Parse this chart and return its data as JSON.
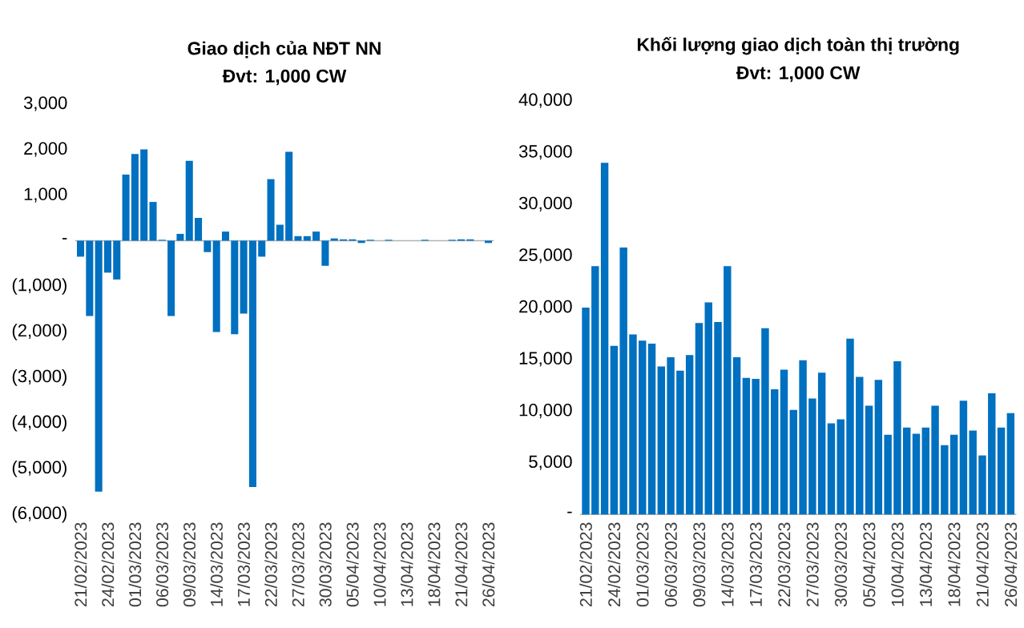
{
  "chart_data": [
    {
      "type": "bar",
      "title": "Giao dịch của NĐT NN",
      "subtitle": "Đvt: 1,000 CW",
      "color": "#0070c0",
      "categories": [
        "21/02/2023",
        null,
        null,
        "24/02/2023",
        null,
        null,
        "01/03/2023",
        null,
        null,
        "06/03/2023",
        null,
        null,
        "09/03/2023",
        null,
        null,
        "14/03/2023",
        null,
        null,
        "17/03/2023",
        null,
        null,
        "22/03/2023",
        null,
        null,
        "27/03/2023",
        null,
        null,
        "30/03/2023",
        null,
        null,
        "05/04/2023",
        null,
        null,
        "10/04/2023",
        null,
        null,
        "13/04/2023",
        null,
        null,
        "18/04/2023",
        null,
        null,
        "21/04/2023",
        null,
        null,
        "26/04/2023"
      ],
      "values": [
        -350,
        -1650,
        -5500,
        -700,
        -850,
        1450,
        1900,
        2000,
        850,
        20,
        -1650,
        150,
        1750,
        500,
        -250,
        -2000,
        200,
        -2050,
        -1600,
        -5400,
        -350,
        1350,
        350,
        1950,
        100,
        100,
        200,
        -550,
        50,
        30,
        30,
        -50,
        20,
        0,
        20,
        0,
        0,
        0,
        20,
        0,
        0,
        20,
        30,
        30,
        0,
        -50
      ],
      "ylim": [
        -6000,
        3000
      ],
      "yticks": [
        {
          "value": -6000,
          "label": "(6,000)"
        },
        {
          "value": -5000,
          "label": "(5,000)"
        },
        {
          "value": -4000,
          "label": "(4,000)"
        },
        {
          "value": -3000,
          "label": "(3,000)"
        },
        {
          "value": -2000,
          "label": "(2,000)"
        },
        {
          "value": -1000,
          "label": "(1,000)"
        },
        {
          "value": 0,
          "label": "-"
        },
        {
          "value": 1000,
          "label": "1,000"
        },
        {
          "value": 2000,
          "label": "2,000"
        },
        {
          "value": 3000,
          "label": "3,000"
        }
      ]
    },
    {
      "type": "bar",
      "title": "Khối lượng giao dịch toàn thị trường",
      "subtitle": "Đvt: 1,000 CW",
      "color": "#0070c0",
      "categories": [
        "21/02/2023",
        null,
        null,
        "24/02/2023",
        null,
        null,
        "01/03/2023",
        null,
        null,
        "06/03/2023",
        null,
        null,
        "09/03/2023",
        null,
        null,
        "14/03/2023",
        null,
        null,
        "17/03/2023",
        null,
        null,
        "22/03/2023",
        null,
        null,
        "27/03/2023",
        null,
        null,
        "30/03/2023",
        null,
        null,
        "05/04/2023",
        null,
        null,
        "10/04/2023",
        null,
        null,
        "13/04/2023",
        null,
        null,
        "18/04/2023",
        null,
        null,
        "21/04/2023",
        null,
        null,
        "26/04/2023"
      ],
      "values": [
        20000,
        24000,
        34000,
        16300,
        25800,
        17400,
        16800,
        16500,
        14300,
        15200,
        13900,
        15400,
        18500,
        20500,
        18600,
        24000,
        15200,
        13200,
        13100,
        18000,
        12100,
        14000,
        10100,
        14900,
        11200,
        13700,
        8800,
        9200,
        17000,
        13300,
        10500,
        13000,
        7700,
        14800,
        8400,
        7800,
        8400,
        10500,
        6700,
        7700,
        11000,
        8100,
        5700,
        11700,
        8400,
        9800
      ],
      "ylim": [
        0,
        40000
      ],
      "yticks": [
        {
          "value": 0,
          "label": "-"
        },
        {
          "value": 5000,
          "label": "5,000"
        },
        {
          "value": 10000,
          "label": "10,000"
        },
        {
          "value": 15000,
          "label": "15,000"
        },
        {
          "value": 20000,
          "label": "20,000"
        },
        {
          "value": 25000,
          "label": "25,000"
        },
        {
          "value": 30000,
          "label": "30,000"
        },
        {
          "value": 35000,
          "label": "35,000"
        },
        {
          "value": 40000,
          "label": "40,000"
        }
      ]
    }
  ]
}
